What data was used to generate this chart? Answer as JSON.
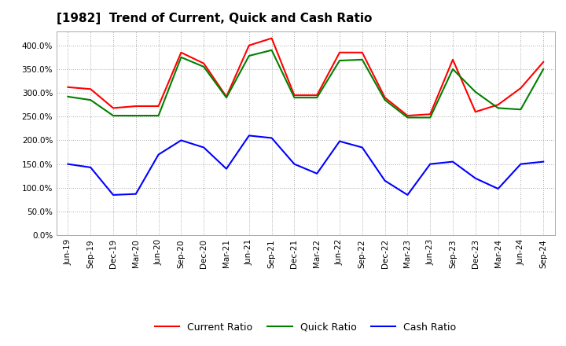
{
  "title": "[1982]  Trend of Current, Quick and Cash Ratio",
  "labels": [
    "Jun-19",
    "Sep-19",
    "Dec-19",
    "Mar-20",
    "Jun-20",
    "Sep-20",
    "Dec-20",
    "Mar-21",
    "Jun-21",
    "Sep-21",
    "Dec-21",
    "Mar-22",
    "Jun-22",
    "Sep-22",
    "Dec-22",
    "Mar-23",
    "Jun-23",
    "Sep-23",
    "Dec-23",
    "Mar-24",
    "Jun-24",
    "Sep-24"
  ],
  "current_ratio": [
    312,
    308,
    268,
    272,
    272,
    385,
    362,
    292,
    400,
    415,
    295,
    295,
    385,
    385,
    290,
    252,
    255,
    370,
    260,
    275,
    310,
    365
  ],
  "quick_ratio": [
    292,
    285,
    252,
    252,
    252,
    375,
    355,
    290,
    378,
    390,
    290,
    290,
    368,
    370,
    285,
    248,
    248,
    350,
    302,
    268,
    265,
    350
  ],
  "cash_ratio": [
    150,
    143,
    85,
    87,
    170,
    200,
    185,
    140,
    210,
    205,
    150,
    130,
    198,
    185,
    115,
    85,
    150,
    155,
    120,
    98,
    150,
    155
  ],
  "current_color": "#FF0000",
  "quick_color": "#008000",
  "cash_color": "#0000FF",
  "ylim": [
    0,
    430
  ],
  "yticks": [
    0,
    50,
    100,
    150,
    200,
    250,
    300,
    350,
    400
  ],
  "background_color": "#FFFFFF",
  "grid_color": "#AAAAAA",
  "line_width": 1.5,
  "title_fontsize": 11,
  "tick_fontsize": 7.5,
  "legend_fontsize": 9
}
